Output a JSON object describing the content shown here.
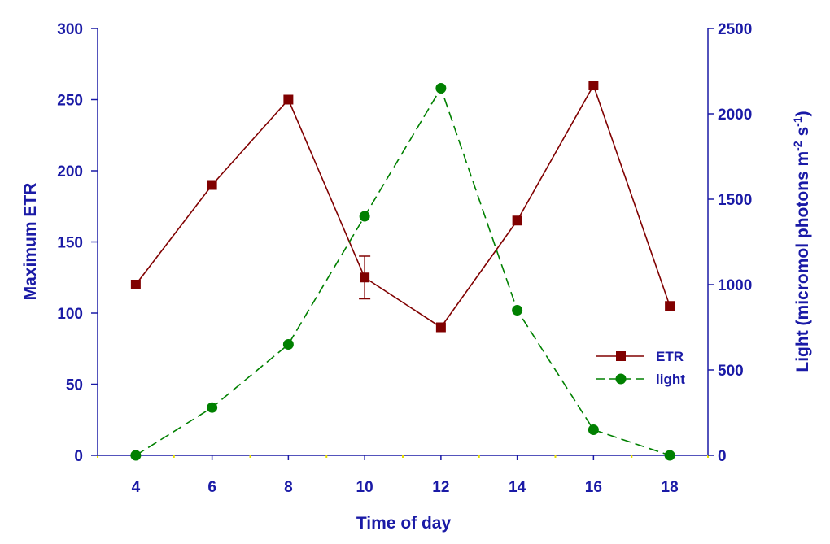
{
  "chart_data": {
    "type": "line",
    "title": "",
    "xlabel": "Time of day",
    "ylabel_left": "Maximum ETR",
    "ylabel_right_main": "Light (micromol photons m",
    "ylabel_right_sup1": "-2",
    "ylabel_right_mid": " s",
    "ylabel_right_sup2": "-1",
    "ylabel_right_end": ")",
    "xlim": [
      3,
      19
    ],
    "ylim_left": [
      0,
      300
    ],
    "ylim_right": [
      0,
      2500
    ],
    "x_ticks": [
      4,
      6,
      8,
      10,
      12,
      14,
      16,
      18
    ],
    "y_left_ticks": [
      0,
      50,
      100,
      150,
      200,
      250,
      300
    ],
    "y_right_ticks": [
      0,
      500,
      1000,
      1500,
      2000,
      2500
    ],
    "grid": false,
    "legend_position": "right",
    "series": [
      {
        "name": "ETR",
        "axis": "left",
        "marker": "square",
        "line_style": "solid",
        "color": "#800000",
        "x": [
          4,
          6,
          8,
          10,
          12,
          14,
          16,
          18
        ],
        "y": [
          120,
          190,
          250,
          125,
          90,
          165,
          260,
          105
        ],
        "error": [
          null,
          null,
          null,
          15,
          null,
          null,
          null,
          null
        ]
      },
      {
        "name": "light",
        "axis": "right",
        "marker": "circle",
        "line_style": "dashed",
        "color": "#008000",
        "x": [
          4,
          6,
          8,
          10,
          12,
          14,
          16,
          18
        ],
        "y": [
          0,
          280,
          650,
          1400,
          2150,
          850,
          150,
          0
        ]
      }
    ]
  },
  "colors": {
    "axis": "#1a1aa6",
    "text": "#1a1aa6",
    "minor_tick": "#e8e000"
  }
}
